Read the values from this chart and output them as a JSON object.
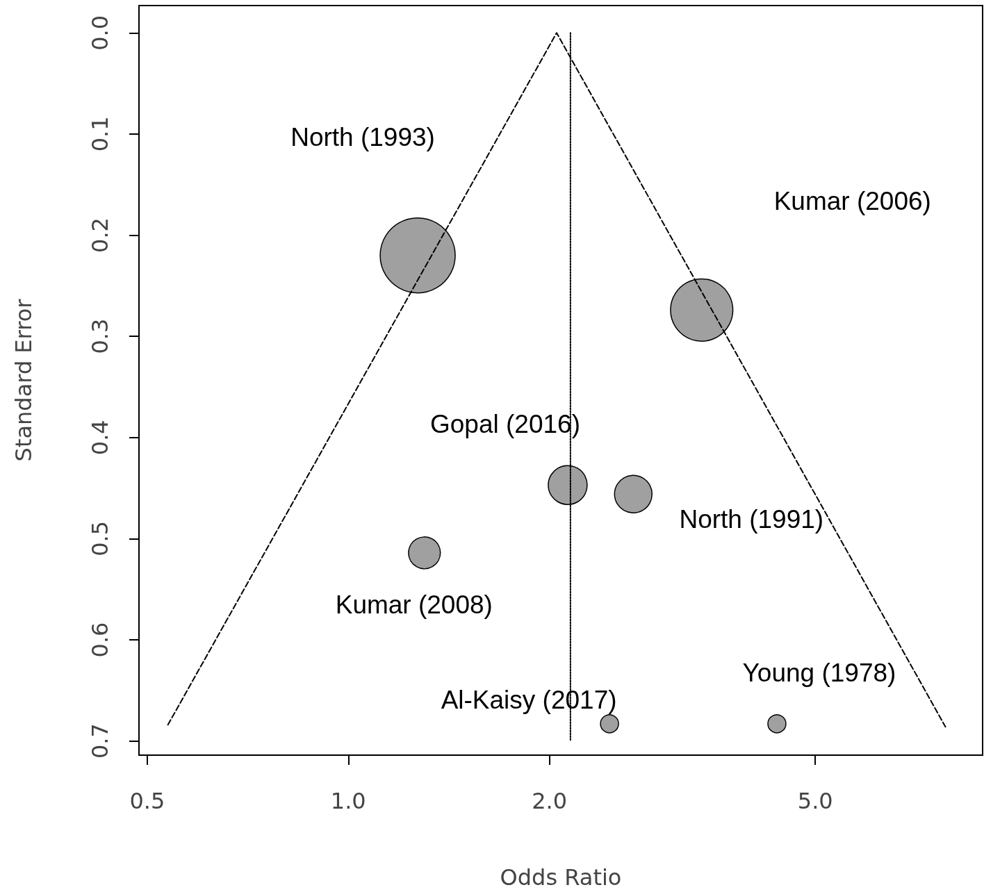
{
  "chart_data": {
    "type": "bubble",
    "xlabel": "Odds Ratio",
    "ylabel": "Standard Error",
    "log": "x",
    "xlim": [
      0.486,
      8.9
    ],
    "xticks": [
      0.5,
      {
        "value": 1,
        "label": "1.0"
      },
      {
        "value": 2,
        "label": "2.0"
      },
      {
        "value": 5,
        "label": "5.0"
      }
    ],
    "ylim": [
      0.714,
      -0.027
    ],
    "yticks": [
      {
        "value": 0,
        "label": "0.0"
      },
      0.1,
      0.2,
      0.3,
      0.4,
      0.5,
      0.6,
      0.7
    ],
    "grid": false,
    "series": [
      {
        "type": "line",
        "color": "#000000",
        "line_style": "dashed",
        "x": [
          0.537,
          2.05,
          7.83
        ],
        "values": [
          0.684,
          0,
          0.686
        ]
      },
      {
        "type": "line",
        "color": "#000000",
        "line_style": "dotted",
        "x": [
          2.15,
          2.15
        ],
        "values": [
          0,
          0.7
        ]
      },
      {
        "color": "#a0a0a0",
        "x": [
          1.27,
          3.38,
          2.13,
          2.67,
          1.3,
          2.46,
          4.38
        ],
        "values": [
          0.22,
          0.274,
          0.447,
          0.456,
          0.514,
          0.683,
          0.683
        ],
        "sizes": [
          1,
          0.69,
          0.27,
          0.25,
          0.18,
          0.058,
          0.058
        ]
      }
    ],
    "annotations": [
      "North (1993)",
      "Kumar (2006)",
      "Gopal (2016)",
      "North (1991)",
      "Kumar (2008)",
      "Al-Kaisy (2017)",
      "Young (1978)"
    ]
  }
}
